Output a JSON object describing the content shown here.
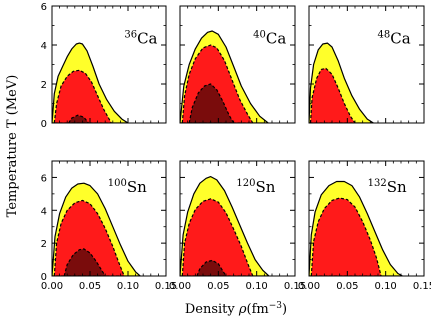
{
  "chart_data": {
    "type": "area",
    "xlabel": "Density ",
    "xlabel_symbol": "ρ",
    "xlabel_unit": "(fm",
    "xlabel_exp": "−3",
    "xlabel_close": ")",
    "ylabel": "Temperature T (MeV)",
    "x_ticks": [
      "0.00",
      "0.05",
      "0.10",
      "0.15"
    ],
    "xlim": [
      0.0,
      0.15
    ],
    "colors": {
      "outer": "#ffff2a",
      "middle": "#ff1a1a",
      "inner": "#7a0c0c"
    },
    "rows": [
      {
        "ylim": [
          0,
          6
        ],
        "y_ticks": [
          "0",
          "2",
          "4",
          "6"
        ]
      },
      {
        "ylim": [
          0,
          7
        ],
        "y_ticks": [
          "0",
          "2",
          "4",
          "6"
        ]
      }
    ],
    "panels": [
      {
        "mass": "36",
        "element": "Ca",
        "outer": [
          [
            0,
            0
          ],
          [
            0.003,
            1.5
          ],
          [
            0.008,
            2.4
          ],
          [
            0.014,
            2.9
          ],
          [
            0.02,
            3.4
          ],
          [
            0.026,
            3.8
          ],
          [
            0.032,
            4.05
          ],
          [
            0.036,
            4.1
          ],
          [
            0.04,
            4.05
          ],
          [
            0.046,
            3.7
          ],
          [
            0.054,
            2.9
          ],
          [
            0.062,
            2.0
          ],
          [
            0.072,
            1.2
          ],
          [
            0.082,
            0.6
          ],
          [
            0.092,
            0.2
          ],
          [
            0.1,
            0
          ]
        ],
        "middle": [
          [
            0.003,
            0
          ],
          [
            0.006,
            1.0
          ],
          [
            0.012,
            1.9
          ],
          [
            0.02,
            2.4
          ],
          [
            0.028,
            2.65
          ],
          [
            0.036,
            2.7
          ],
          [
            0.044,
            2.55
          ],
          [
            0.052,
            2.1
          ],
          [
            0.06,
            1.4
          ],
          [
            0.068,
            0.7
          ],
          [
            0.078,
            0
          ]
        ],
        "inner": [
          [
            0.022,
            0
          ],
          [
            0.026,
            0.25
          ],
          [
            0.034,
            0.4
          ],
          [
            0.042,
            0.3
          ],
          [
            0.048,
            0
          ]
        ]
      },
      {
        "mass": "40",
        "element": "Ca",
        "outer": [
          [
            0,
            0
          ],
          [
            0.005,
            1.9
          ],
          [
            0.012,
            3.0
          ],
          [
            0.02,
            3.8
          ],
          [
            0.028,
            4.35
          ],
          [
            0.036,
            4.65
          ],
          [
            0.042,
            4.72
          ],
          [
            0.05,
            4.55
          ],
          [
            0.06,
            3.9
          ],
          [
            0.07,
            2.9
          ],
          [
            0.08,
            1.9
          ],
          [
            0.092,
            1.0
          ],
          [
            0.104,
            0.35
          ],
          [
            0.115,
            0
          ]
        ],
        "middle": [
          [
            0.003,
            0
          ],
          [
            0.006,
            1.4
          ],
          [
            0.012,
            2.5
          ],
          [
            0.02,
            3.3
          ],
          [
            0.03,
            3.85
          ],
          [
            0.04,
            4.0
          ],
          [
            0.048,
            3.85
          ],
          [
            0.058,
            3.2
          ],
          [
            0.068,
            2.2
          ],
          [
            0.078,
            1.2
          ],
          [
            0.088,
            0.45
          ],
          [
            0.095,
            0
          ]
        ],
        "inner": [
          [
            0.012,
            0
          ],
          [
            0.016,
            0.8
          ],
          [
            0.024,
            1.55
          ],
          [
            0.032,
            1.9
          ],
          [
            0.04,
            2.0
          ],
          [
            0.048,
            1.7
          ],
          [
            0.056,
            1.1
          ],
          [
            0.064,
            0.4
          ],
          [
            0.07,
            0
          ]
        ]
      },
      {
        "mass": "48",
        "element": "Ca",
        "outer": [
          [
            0,
            0
          ],
          [
            0.002,
            1.8
          ],
          [
            0.006,
            3.0
          ],
          [
            0.012,
            3.75
          ],
          [
            0.018,
            4.05
          ],
          [
            0.024,
            4.1
          ],
          [
            0.03,
            3.9
          ],
          [
            0.038,
            3.2
          ],
          [
            0.046,
            2.3
          ],
          [
            0.056,
            1.4
          ],
          [
            0.066,
            0.7
          ],
          [
            0.076,
            0.2
          ],
          [
            0.084,
            0
          ]
        ],
        "middle": [
          [
            0.002,
            0
          ],
          [
            0.004,
            1.3
          ],
          [
            0.01,
            2.3
          ],
          [
            0.016,
            2.75
          ],
          [
            0.022,
            2.8
          ],
          [
            0.03,
            2.5
          ],
          [
            0.038,
            1.8
          ],
          [
            0.046,
            1.0
          ],
          [
            0.054,
            0.35
          ],
          [
            0.06,
            0
          ]
        ],
        "inner": []
      },
      {
        "mass": "100",
        "element": "Sn",
        "outer": [
          [
            0,
            0
          ],
          [
            0.004,
            2.4
          ],
          [
            0.01,
            3.8
          ],
          [
            0.018,
            4.8
          ],
          [
            0.026,
            5.35
          ],
          [
            0.034,
            5.6
          ],
          [
            0.042,
            5.65
          ],
          [
            0.05,
            5.5
          ],
          [
            0.06,
            5.0
          ],
          [
            0.07,
            4.1
          ],
          [
            0.08,
            3.0
          ],
          [
            0.09,
            1.9
          ],
          [
            0.1,
            0.9
          ],
          [
            0.11,
            0.25
          ],
          [
            0.116,
            0
          ]
        ],
        "middle": [
          [
            0.003,
            0
          ],
          [
            0.006,
            2.0
          ],
          [
            0.012,
            3.2
          ],
          [
            0.02,
            4.0
          ],
          [
            0.03,
            4.45
          ],
          [
            0.04,
            4.6
          ],
          [
            0.05,
            4.4
          ],
          [
            0.06,
            3.8
          ],
          [
            0.07,
            2.9
          ],
          [
            0.08,
            1.8
          ],
          [
            0.088,
            0.8
          ],
          [
            0.095,
            0
          ]
        ],
        "inner": [
          [
            0.016,
            0
          ],
          [
            0.02,
            0.7
          ],
          [
            0.028,
            1.3
          ],
          [
            0.036,
            1.6
          ],
          [
            0.042,
            1.65
          ],
          [
            0.05,
            1.4
          ],
          [
            0.058,
            0.9
          ],
          [
            0.066,
            0.3
          ],
          [
            0.07,
            0
          ]
        ]
      },
      {
        "mass": "120",
        "element": "Sn",
        "outer": [
          [
            0,
            0
          ],
          [
            0.004,
            2.5
          ],
          [
            0.01,
            3.9
          ],
          [
            0.018,
            5.0
          ],
          [
            0.026,
            5.65
          ],
          [
            0.034,
            5.95
          ],
          [
            0.04,
            6.05
          ],
          [
            0.048,
            5.85
          ],
          [
            0.058,
            5.2
          ],
          [
            0.068,
            4.2
          ],
          [
            0.078,
            3.1
          ],
          [
            0.088,
            2.0
          ],
          [
            0.098,
            1.0
          ],
          [
            0.108,
            0.35
          ],
          [
            0.116,
            0
          ]
        ],
        "middle": [
          [
            0.003,
            0
          ],
          [
            0.006,
            2.0
          ],
          [
            0.012,
            3.2
          ],
          [
            0.02,
            4.05
          ],
          [
            0.03,
            4.55
          ],
          [
            0.04,
            4.7
          ],
          [
            0.05,
            4.5
          ],
          [
            0.06,
            3.85
          ],
          [
            0.07,
            2.85
          ],
          [
            0.08,
            1.8
          ],
          [
            0.088,
            0.8
          ],
          [
            0.095,
            0
          ]
        ],
        "inner": [
          [
            0.022,
            0
          ],
          [
            0.026,
            0.45
          ],
          [
            0.034,
            0.85
          ],
          [
            0.042,
            0.95
          ],
          [
            0.05,
            0.75
          ],
          [
            0.056,
            0.3
          ],
          [
            0.06,
            0
          ]
        ]
      },
      {
        "mass": "132",
        "element": "Sn",
        "outer": [
          [
            0,
            0
          ],
          [
            0.003,
            2.5
          ],
          [
            0.008,
            3.9
          ],
          [
            0.016,
            4.95
          ],
          [
            0.026,
            5.5
          ],
          [
            0.036,
            5.75
          ],
          [
            0.046,
            5.75
          ],
          [
            0.056,
            5.5
          ],
          [
            0.066,
            4.8
          ],
          [
            0.076,
            3.8
          ],
          [
            0.086,
            2.7
          ],
          [
            0.096,
            1.6
          ],
          [
            0.106,
            0.7
          ],
          [
            0.116,
            0.15
          ],
          [
            0.122,
            0
          ]
        ],
        "middle": [
          [
            0.003,
            0
          ],
          [
            0.006,
            2.1
          ],
          [
            0.012,
            3.3
          ],
          [
            0.02,
            4.1
          ],
          [
            0.03,
            4.6
          ],
          [
            0.04,
            4.75
          ],
          [
            0.05,
            4.65
          ],
          [
            0.06,
            4.2
          ],
          [
            0.07,
            3.3
          ],
          [
            0.08,
            2.2
          ],
          [
            0.088,
            1.1
          ],
          [
            0.094,
            0
          ]
        ],
        "inner": []
      }
    ]
  }
}
